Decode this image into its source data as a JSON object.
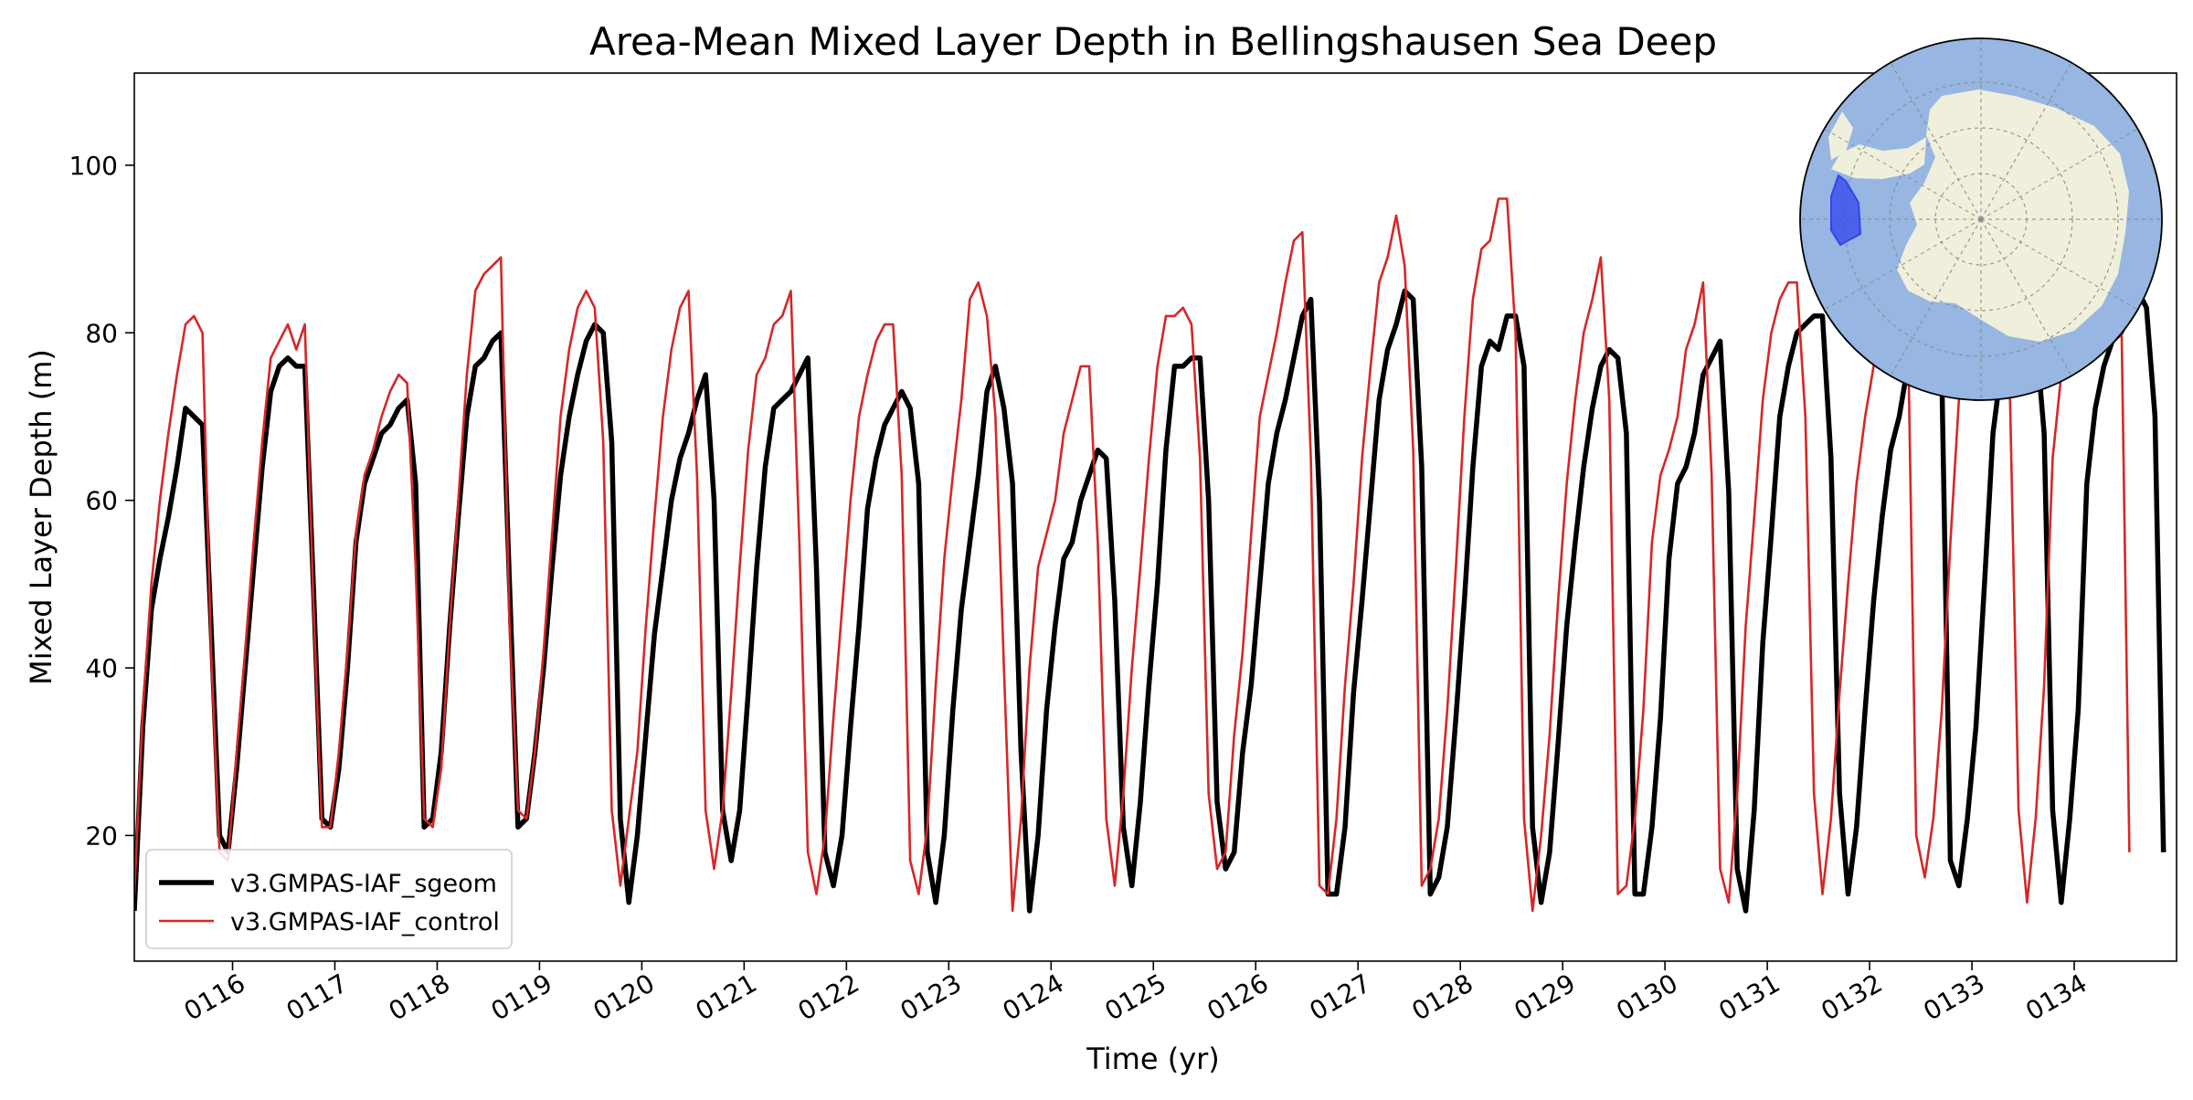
{
  "chart_data": {
    "type": "line",
    "title": "Area-Mean Mixed Layer Depth in Bellingshausen Sea Deep",
    "xlabel": "Time (yr)",
    "ylabel": "Mixed Layer Depth (m)",
    "xlim": [
      115.04,
      135.0
    ],
    "ylim": [
      5,
      111
    ],
    "grid": false,
    "legend_position": "lower-left",
    "x_ticks": [
      {
        "value": 116,
        "label": "0116"
      },
      {
        "value": 117,
        "label": "0117"
      },
      {
        "value": 118,
        "label": "0118"
      },
      {
        "value": 119,
        "label": "0119"
      },
      {
        "value": 120,
        "label": "0120"
      },
      {
        "value": 121,
        "label": "0121"
      },
      {
        "value": 122,
        "label": "0122"
      },
      {
        "value": 123,
        "label": "0123"
      },
      {
        "value": 124,
        "label": "0124"
      },
      {
        "value": 125,
        "label": "0125"
      },
      {
        "value": 126,
        "label": "0126"
      },
      {
        "value": 127,
        "label": "0127"
      },
      {
        "value": 128,
        "label": "0128"
      },
      {
        "value": 129,
        "label": "0129"
      },
      {
        "value": 130,
        "label": "0130"
      },
      {
        "value": 131,
        "label": "0131"
      },
      {
        "value": 132,
        "label": "0132"
      },
      {
        "value": 133,
        "label": "0133"
      },
      {
        "value": 134,
        "label": "0134"
      }
    ],
    "y_ticks": [
      {
        "value": 20,
        "label": "20"
      },
      {
        "value": 40,
        "label": "40"
      },
      {
        "value": 60,
        "label": "60"
      },
      {
        "value": 80,
        "label": "80"
      },
      {
        "value": 100,
        "label": "100"
      }
    ],
    "series": [
      {
        "name": "v3.GMPAS-IAF_sgeom",
        "color": "#000000",
        "x_start": 115.04,
        "x_step": 0.08333,
        "values": [
          11,
          33,
          47,
          53,
          58,
          64,
          71,
          70,
          69,
          45,
          20,
          18,
          28,
          40,
          52,
          64,
          73,
          76,
          77,
          76,
          76,
          50,
          22,
          21,
          28,
          40,
          55,
          62,
          65,
          68,
          69,
          71,
          72,
          62,
          21,
          22,
          30,
          45,
          58,
          70,
          76,
          77,
          79,
          80,
          50,
          21,
          22,
          30,
          40,
          52,
          63,
          70,
          75,
          79,
          81,
          80,
          67,
          22,
          12,
          20,
          32,
          44,
          52,
          60,
          65,
          68,
          72,
          75,
          60,
          23,
          17,
          23,
          37,
          52,
          64,
          71,
          72,
          73,
          75,
          77,
          52,
          18,
          14,
          20,
          33,
          45,
          59,
          65,
          69,
          71,
          73,
          71,
          62,
          18,
          12,
          20,
          35,
          47,
          55,
          63,
          73,
          76,
          71,
          62,
          30,
          11,
          20,
          35,
          45,
          53,
          55,
          60,
          63,
          66,
          65,
          48,
          21,
          14,
          24,
          38,
          50,
          66,
          76,
          76,
          77,
          77,
          60,
          24,
          16,
          18,
          30,
          38,
          50,
          62,
          68,
          72,
          77,
          82,
          84,
          60,
          13,
          13,
          21,
          37,
          48,
          60,
          72,
          78,
          81,
          85,
          84,
          64,
          13,
          15,
          21,
          34,
          48,
          64,
          76,
          79,
          78,
          82,
          82,
          76,
          21,
          12,
          18,
          31,
          45,
          55,
          64,
          71,
          76,
          78,
          77,
          68,
          13,
          13,
          21,
          34,
          53,
          62,
          64,
          68,
          75,
          77,
          79,
          61,
          16,
          11,
          23,
          43,
          56,
          70,
          76,
          80,
          81,
          82,
          82,
          65,
          25,
          13,
          21,
          35,
          48,
          58,
          66,
          70,
          76,
          78,
          80,
          80,
          75,
          17,
          14,
          22,
          33,
          50,
          68,
          76,
          77,
          78,
          79,
          80,
          68,
          23,
          12,
          22,
          35,
          62,
          71,
          76,
          79,
          80,
          82,
          85,
          83,
          70,
          18
        ]
      },
      {
        "name": "v3.GMPAS-IAF_control",
        "color": "#d62728",
        "x_start": 115.04,
        "x_step": 0.08333,
        "values": [
          13,
          35,
          50,
          60,
          68,
          75,
          81,
          82,
          80,
          42,
          18,
          17,
          30,
          42,
          55,
          67,
          77,
          79,
          81,
          78,
          81,
          48,
          21,
          21,
          30,
          42,
          56,
          63,
          66,
          70,
          73,
          75,
          74,
          52,
          22,
          21,
          28,
          45,
          60,
          75,
          85,
          87,
          88,
          89,
          45,
          23,
          22,
          30,
          42,
          56,
          70,
          78,
          83,
          85,
          83,
          67,
          23,
          14,
          22,
          30,
          45,
          58,
          70,
          78,
          83,
          85,
          63,
          23,
          16,
          23,
          37,
          52,
          66,
          75,
          77,
          81,
          82,
          85,
          55,
          18,
          13,
          20,
          34,
          47,
          60,
          70,
          75,
          79,
          81,
          81,
          63,
          17,
          13,
          21,
          38,
          53,
          63,
          72,
          84,
          86,
          82,
          70,
          40,
          11,
          22,
          40,
          52,
          56,
          60,
          68,
          72,
          76,
          76,
          55,
          22,
          14,
          25,
          40,
          52,
          65,
          76,
          82,
          82,
          83,
          81,
          65,
          25,
          16,
          18,
          32,
          42,
          56,
          70,
          75,
          80,
          86,
          91,
          92,
          65,
          14,
          13,
          22,
          38,
          50,
          65,
          76,
          86,
          89,
          94,
          88,
          66,
          14,
          16,
          22,
          35,
          52,
          70,
          84,
          90,
          91,
          96,
          96,
          80,
          22,
          11,
          20,
          32,
          48,
          62,
          72,
          80,
          84,
          89,
          72,
          13,
          14,
          22,
          35,
          55,
          63,
          66,
          70,
          78,
          81,
          86,
          63,
          16,
          12,
          25,
          45,
          58,
          72,
          80,
          84,
          86,
          86,
          70,
          25,
          13,
          22,
          37,
          50,
          62,
          70,
          76,
          82,
          86,
          87,
          82,
          20,
          15,
          22,
          35,
          55,
          72,
          82,
          85,
          86,
          88,
          88,
          72,
          23,
          12,
          22,
          38,
          65,
          75,
          82,
          86,
          92,
          96,
          100,
          101,
          86,
          18
        ]
      }
    ],
    "inset_map": {
      "projection": "south-polar-stereographic",
      "ocean_color": "#97b6e1",
      "land_color": "#efefdb",
      "region_color": "#3344ee"
    }
  }
}
